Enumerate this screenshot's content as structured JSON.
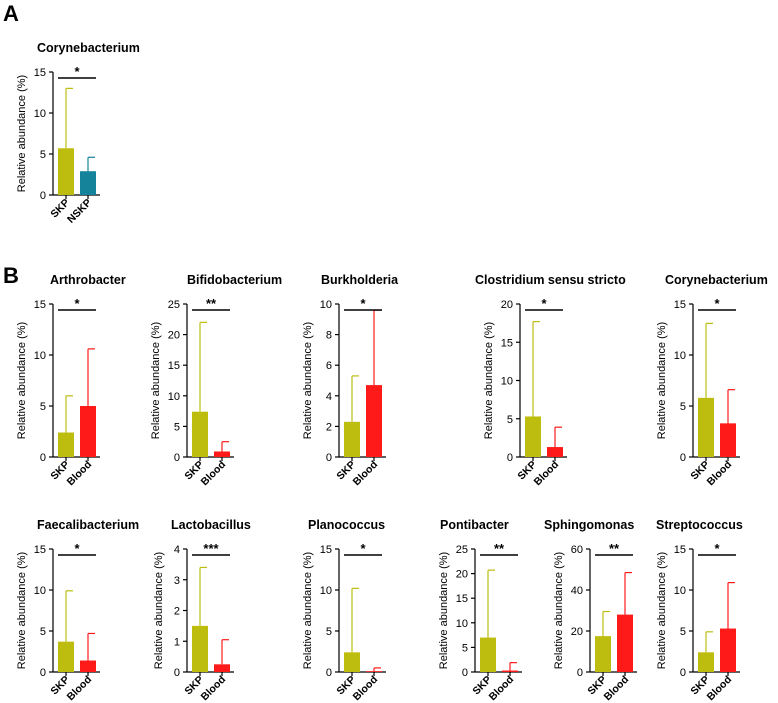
{
  "panels": [
    {
      "label": "A"
    },
    {
      "label": "B"
    }
  ],
  "chart_data": [
    {
      "type": "bar",
      "panel": "A",
      "title": "Corynebacterium",
      "ylabel": "Relative abundance (%)",
      "categories": [
        "SKP",
        "NSKP"
      ],
      "values": [
        5.7,
        2.9
      ],
      "errors": [
        7.3,
        1.7
      ],
      "colors": [
        "#bdbd10",
        "#15849b"
      ],
      "ylim": [
        0,
        15
      ],
      "yticks": [
        0,
        5,
        10,
        15
      ],
      "significance": "*"
    },
    {
      "type": "bar",
      "panel": "B",
      "title": "Arthrobacter",
      "ylabel": "Relative abundance (%)",
      "categories": [
        "SKP",
        "Blood"
      ],
      "values": [
        2.4,
        5.0
      ],
      "errors": [
        3.6,
        5.6
      ],
      "colors": [
        "#bdbd10",
        "#ff1a1a"
      ],
      "ylim": [
        0,
        15
      ],
      "yticks": [
        0,
        5,
        10,
        15
      ],
      "significance": "*"
    },
    {
      "type": "bar",
      "panel": "B",
      "title": "Bifidobacterium",
      "ylabel": "Relative abundance (%)",
      "categories": [
        "SKP",
        "Blood"
      ],
      "values": [
        7.4,
        0.9
      ],
      "errors": [
        14.6,
        1.6
      ],
      "colors": [
        "#bdbd10",
        "#ff1a1a"
      ],
      "ylim": [
        0,
        25
      ],
      "yticks": [
        0,
        5,
        10,
        15,
        20,
        25
      ],
      "significance": "**"
    },
    {
      "type": "bar",
      "panel": "B",
      "title": "Burkholderia",
      "ylabel": "Relative abundance (%)",
      "categories": [
        "SKP",
        "Blood"
      ],
      "values": [
        2.3,
        4.7
      ],
      "errors": [
        3.0,
        4.9
      ],
      "colors": [
        "#bdbd10",
        "#ff1a1a"
      ],
      "ylim": [
        0,
        10
      ],
      "yticks": [
        0,
        2,
        4,
        6,
        8,
        10
      ],
      "significance": "*"
    },
    {
      "type": "bar",
      "panel": "B",
      "title": "Clostridium sensu stricto",
      "ylabel": "Relative abundance (%)",
      "categories": [
        "SKP",
        "Blood"
      ],
      "values": [
        5.3,
        1.3
      ],
      "errors": [
        12.4,
        2.6
      ],
      "colors": [
        "#bdbd10",
        "#ff1a1a"
      ],
      "ylim": [
        0,
        20
      ],
      "yticks": [
        0,
        5,
        10,
        15,
        20
      ],
      "significance": "*"
    },
    {
      "type": "bar",
      "panel": "B",
      "title": "Corynebacterium",
      "ylabel": "Relative abundance (%)",
      "categories": [
        "SKP",
        "Blood"
      ],
      "values": [
        5.8,
        3.3
      ],
      "errors": [
        7.3,
        3.3
      ],
      "colors": [
        "#bdbd10",
        "#ff1a1a"
      ],
      "ylim": [
        0,
        15
      ],
      "yticks": [
        0,
        5,
        10,
        15
      ],
      "significance": "*"
    },
    {
      "type": "bar",
      "panel": "B",
      "title": "Faecalibacterium",
      "ylabel": "Relative abundance (%)",
      "categories": [
        "SKP",
        "Blood"
      ],
      "values": [
        3.7,
        1.4
      ],
      "errors": [
        6.2,
        3.3
      ],
      "colors": [
        "#bdbd10",
        "#ff1a1a"
      ],
      "ylim": [
        0,
        15
      ],
      "yticks": [
        0,
        5,
        10,
        15
      ],
      "significance": "*"
    },
    {
      "type": "bar",
      "panel": "B",
      "title": "Lactobacillus",
      "ylabel": "Relative abundance (%)",
      "categories": [
        "SKP",
        "Blood"
      ],
      "values": [
        1.5,
        0.25
      ],
      "errors": [
        1.9,
        0.8
      ],
      "colors": [
        "#bdbd10",
        "#ff1a1a"
      ],
      "ylim": [
        0,
        4
      ],
      "yticks": [
        0,
        1,
        2,
        3,
        4
      ],
      "significance": "***"
    },
    {
      "type": "bar",
      "panel": "B",
      "title": "Planococcus",
      "ylabel": "Relative abundance (%)",
      "categories": [
        "SKP",
        "Blood"
      ],
      "values": [
        2.4,
        0.1
      ],
      "errors": [
        7.8,
        0.4
      ],
      "colors": [
        "#bdbd10",
        "#ff1a1a"
      ],
      "ylim": [
        0,
        15
      ],
      "yticks": [
        0,
        5,
        10,
        15
      ],
      "significance": "*"
    },
    {
      "type": "bar",
      "panel": "B",
      "title": "Pontibacter",
      "ylabel": "Relative abundance (%)",
      "categories": [
        "SKP",
        "Blood"
      ],
      "values": [
        7.0,
        0.3
      ],
      "errors": [
        13.7,
        1.6
      ],
      "colors": [
        "#bdbd10",
        "#ff1a1a"
      ],
      "ylim": [
        0,
        25
      ],
      "yticks": [
        0,
        5,
        10,
        15,
        20,
        25
      ],
      "significance": "**"
    },
    {
      "type": "bar",
      "panel": "B",
      "title": "Sphingomonas",
      "ylabel": "Relative abundance (%)",
      "categories": [
        "SKP",
        "Blood"
      ],
      "values": [
        17.5,
        28.0
      ],
      "errors": [
        12.0,
        20.5
      ],
      "colors": [
        "#bdbd10",
        "#ff1a1a"
      ],
      "ylim": [
        0,
        60
      ],
      "yticks": [
        0,
        20,
        40,
        60
      ],
      "significance": "**"
    },
    {
      "type": "bar",
      "panel": "B",
      "title": "Streptococcus",
      "ylabel": "Relative abundance (%)",
      "categories": [
        "SKP",
        "Blood"
      ],
      "values": [
        2.4,
        5.3
      ],
      "errors": [
        2.5,
        5.6
      ],
      "colors": [
        "#bdbd10",
        "#ff1a1a"
      ],
      "ylim": [
        0,
        15
      ],
      "yticks": [
        0,
        5,
        10,
        15
      ],
      "significance": "*"
    }
  ]
}
